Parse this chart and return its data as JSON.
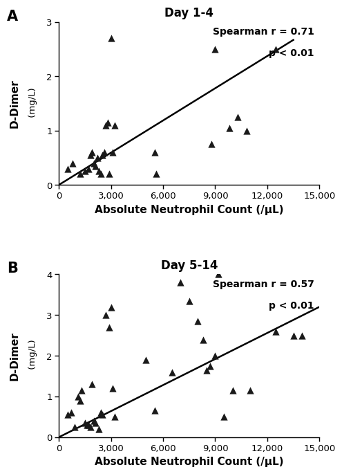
{
  "panel_A": {
    "title": "Day 1-4",
    "label": "A",
    "x": [
      500,
      800,
      1200,
      1500,
      1700,
      1800,
      1900,
      2000,
      2100,
      2200,
      2300,
      2400,
      2500,
      2600,
      2700,
      2800,
      2900,
      3000,
      3100,
      3200,
      5500,
      5600,
      8800,
      9000,
      9800,
      10300,
      10800,
      12500
    ],
    "y": [
      0.3,
      0.4,
      0.2,
      0.25,
      0.3,
      0.55,
      0.6,
      0.4,
      0.35,
      0.5,
      0.25,
      0.2,
      0.55,
      0.6,
      1.1,
      1.15,
      0.2,
      2.7,
      0.6,
      1.1,
      0.6,
      0.2,
      0.75,
      2.5,
      1.05,
      1.25,
      1.0,
      2.5
    ],
    "line_x": [
      0,
      13500
    ],
    "line_y": [
      0.0,
      2.67
    ],
    "spearman_r": "0.71",
    "p_value": "< 0.01",
    "xlim": [
      0,
      15000
    ],
    "ylim": [
      0,
      3
    ],
    "yticks": [
      0,
      1,
      2,
      3
    ],
    "xticks": [
      0,
      3000,
      6000,
      9000,
      12000,
      15000
    ],
    "xlabel": "Absolute Neutrophil Count (/μL)",
    "ylabel_main": "D-Dimer",
    "ylabel_unit": " (mg/L)"
  },
  "panel_B": {
    "title": "Day 5-14",
    "label": "B",
    "x": [
      500,
      700,
      900,
      1100,
      1200,
      1300,
      1500,
      1600,
      1700,
      1800,
      1900,
      2000,
      2100,
      2300,
      2400,
      2500,
      2700,
      2900,
      3000,
      3100,
      3200,
      5000,
      5500,
      6500,
      7000,
      7500,
      8000,
      8300,
      8500,
      8700,
      9000,
      9200,
      9500,
      10000,
      11000,
      12500,
      13500,
      14000
    ],
    "y": [
      0.55,
      0.6,
      0.25,
      1.0,
      0.9,
      1.15,
      0.35,
      0.3,
      0.3,
      0.25,
      1.3,
      0.4,
      0.35,
      0.2,
      0.6,
      0.55,
      3.0,
      2.7,
      3.2,
      1.2,
      0.5,
      1.9,
      0.65,
      1.6,
      3.8,
      3.35,
      2.85,
      2.4,
      1.65,
      1.75,
      2.0,
      4.0,
      0.5,
      1.15,
      1.15,
      2.6,
      2.5,
      2.5
    ],
    "line_x": [
      0,
      15000
    ],
    "line_y": [
      0.0,
      3.2
    ],
    "spearman_r": "0.57",
    "p_value": "< 0.01",
    "xlim": [
      0,
      15000
    ],
    "ylim": [
      0,
      4
    ],
    "yticks": [
      0,
      1,
      2,
      3,
      4
    ],
    "xticks": [
      0,
      3000,
      6000,
      9000,
      12000,
      15000
    ],
    "xlabel": "Absolute Neutrophil Count (/μL)",
    "ylabel_main": "D-Dimer",
    "ylabel_unit": " (mg/L)"
  },
  "marker_color": "#1a1a1a",
  "line_color": "#000000",
  "background_color": "#ffffff",
  "marker_size": 55,
  "tick_fontsize": 9.5,
  "label_fontsize": 11,
  "title_fontsize": 12,
  "annotation_fontsize": 10
}
